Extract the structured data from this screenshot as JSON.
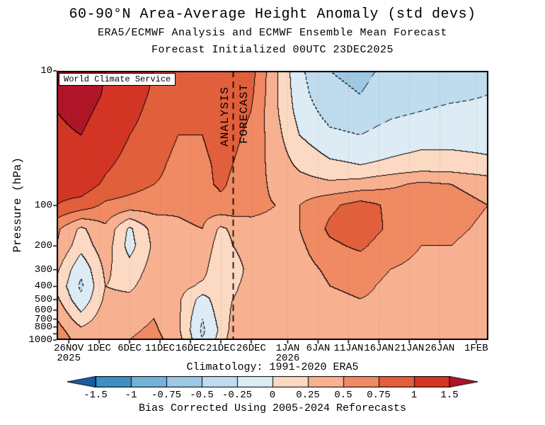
{
  "titles": {
    "line1": "60-90°N Area-Average Height Anomaly (std devs)",
    "line2": "ERA5/ECMWF Analysis and ECMWF Ensemble Mean Forecast",
    "line3": "Forecast Initialized 00UTC 23DEC2025"
  },
  "watermark": "World Climate Service",
  "labels": {
    "analysis": "ANALYSIS",
    "forecast": "FORECAST",
    "climatology": "Climatology: 1991-2020 ERA5",
    "bias": "Bias Corrected Using 2005-2024 Reforecasts"
  },
  "chart_data": {
    "type": "heatmap",
    "subtype": "filled-contour time-pressure section",
    "title": "60-90°N Area-Average Height Anomaly (std devs)",
    "units": "standard deviations",
    "grid": "dotted vertical lines at date ticks",
    "x_axis": {
      "domain_days": [
        0,
        71
      ],
      "ticks": [
        {
          "day": 2,
          "label": "26NOV",
          "sublabel": "2025"
        },
        {
          "day": 7,
          "label": "1DEC"
        },
        {
          "day": 12,
          "label": "6DEC"
        },
        {
          "day": 17,
          "label": "11DEC"
        },
        {
          "day": 22,
          "label": "16DEC"
        },
        {
          "day": 27,
          "label": "21DEC"
        },
        {
          "day": 32,
          "label": "26DEC"
        },
        {
          "day": 38,
          "label": "1JAN",
          "sublabel": "2026"
        },
        {
          "day": 43,
          "label": "6JAN"
        },
        {
          "day": 48,
          "label": "11JAN"
        },
        {
          "day": 53,
          "label": "16JAN"
        },
        {
          "day": 58,
          "label": "21JAN"
        },
        {
          "day": 63,
          "label": "26JAN"
        },
        {
          "day": 69,
          "label": "1FEB"
        }
      ]
    },
    "y_axis": {
      "label": "Pressure (hPa)",
      "scale": "log",
      "domain": [
        10,
        1000
      ],
      "ticks": [
        {
          "v": 10,
          "label": "10"
        },
        {
          "v": 100,
          "label": "100"
        },
        {
          "v": 200,
          "label": "200"
        },
        {
          "v": 300,
          "label": "300"
        },
        {
          "v": 400,
          "label": "400"
        },
        {
          "v": 500,
          "label": "500"
        },
        {
          "v": 600,
          "label": "600"
        },
        {
          "v": 700,
          "label": "700"
        },
        {
          "v": 800,
          "label": "800"
        },
        {
          "v": 900,
          "label": ""
        },
        {
          "v": 1000,
          "label": "1000"
        }
      ]
    },
    "analysis_day": 29,
    "analysis_date": "23DEC2025",
    "time_days": [
      0,
      4,
      8,
      12,
      16,
      20,
      24,
      27,
      29,
      32,
      36,
      40,
      45,
      50,
      55,
      60,
      65,
      71
    ],
    "levels_hpa": [
      10,
      15,
      20,
      30,
      50,
      70,
      100,
      150,
      200,
      300,
      400,
      500,
      700,
      850,
      1000
    ],
    "values": [
      [
        1.6,
        1.8,
        1.5,
        1.2,
        1.0,
        0.9,
        0.9,
        1.0,
        0.95,
        0.85,
        0.3,
        -0.2,
        -0.5,
        -0.55,
        -0.45,
        -0.4,
        -0.35,
        -0.3
      ],
      [
        1.55,
        1.75,
        1.45,
        1.15,
        0.95,
        0.85,
        0.85,
        0.95,
        0.9,
        0.8,
        0.3,
        -0.15,
        -0.45,
        -0.5,
        -0.4,
        -0.35,
        -0.3,
        -0.25
      ],
      [
        1.5,
        1.65,
        1.35,
        1.1,
        0.9,
        0.8,
        0.8,
        0.9,
        0.85,
        0.75,
        0.3,
        -0.1,
        -0.35,
        -0.4,
        -0.3,
        -0.25,
        -0.2,
        -0.2
      ],
      [
        1.4,
        1.5,
        1.2,
        1.0,
        0.85,
        0.75,
        0.75,
        0.85,
        0.8,
        0.7,
        0.35,
        0.0,
        -0.2,
        -0.25,
        -0.15,
        -0.1,
        -0.1,
        -0.1
      ],
      [
        1.2,
        1.3,
        1.05,
        0.9,
        0.8,
        0.7,
        0.7,
        0.8,
        0.75,
        0.65,
        0.4,
        0.2,
        0.05,
        0.0,
        0.05,
        0.1,
        0.1,
        0.05
      ],
      [
        1.1,
        1.15,
        0.95,
        0.85,
        0.75,
        0.7,
        0.7,
        0.78,
        0.72,
        0.6,
        0.45,
        0.35,
        0.3,
        0.35,
        0.45,
        0.55,
        0.5,
        0.4
      ],
      [
        1.0,
        0.9,
        0.7,
        0.65,
        0.6,
        0.55,
        0.6,
        0.7,
        0.68,
        0.55,
        0.5,
        0.5,
        0.7,
        0.85,
        0.7,
        0.6,
        0.6,
        0.5
      ],
      [
        0.55,
        0.2,
        0.45,
        -0.05,
        0.35,
        0.45,
        0.5,
        0.2,
        0.3,
        0.45,
        0.45,
        0.5,
        0.8,
        0.9,
        0.7,
        0.55,
        0.55,
        0.45
      ],
      [
        0.5,
        0.1,
        0.4,
        -0.1,
        0.3,
        0.4,
        0.45,
        0.1,
        0.25,
        0.4,
        0.4,
        0.45,
        0.7,
        0.8,
        0.6,
        0.5,
        0.5,
        0.4
      ],
      [
        0.3,
        -0.2,
        0.3,
        0.1,
        0.35,
        0.4,
        0.35,
        0.0,
        0.1,
        0.35,
        0.35,
        0.4,
        0.55,
        0.6,
        0.5,
        0.45,
        0.5,
        0.4
      ],
      [
        0.2,
        -0.3,
        0.25,
        0.2,
        0.4,
        0.35,
        0.2,
        0.1,
        0.2,
        0.35,
        0.3,
        0.35,
        0.5,
        0.55,
        0.45,
        0.4,
        0.5,
        0.4
      ],
      [
        0.3,
        -0.2,
        0.3,
        0.3,
        0.45,
        0.3,
        -0.1,
        0.15,
        0.25,
        0.35,
        0.3,
        0.35,
        0.45,
        0.5,
        0.45,
        0.4,
        0.5,
        0.4
      ],
      [
        0.5,
        0.1,
        0.4,
        0.4,
        0.5,
        0.3,
        -0.25,
        0.1,
        0.3,
        0.35,
        0.3,
        0.35,
        0.45,
        0.5,
        0.45,
        0.4,
        0.5,
        0.4
      ],
      [
        0.6,
        0.3,
        0.45,
        0.45,
        0.55,
        0.3,
        -0.3,
        0.05,
        0.35,
        0.4,
        0.3,
        0.35,
        0.45,
        0.5,
        0.45,
        0.4,
        0.5,
        0.4
      ],
      [
        0.65,
        0.4,
        0.5,
        0.5,
        0.6,
        0.35,
        -0.25,
        0.1,
        0.4,
        0.4,
        0.3,
        0.35,
        0.45,
        0.5,
        0.45,
        0.4,
        0.5,
        0.4
      ]
    ],
    "thresholds": [
      -1.5,
      -1,
      -0.75,
      -0.5,
      -0.25,
      0,
      0.25,
      0.5,
      0.75,
      1,
      1.5
    ],
    "bin_colors": [
      "#1b5aa5",
      "#3f8ec7",
      "#74b2d9",
      "#9cc8e4",
      "#bfdcee",
      "#dcebf4",
      "#fcd9c2",
      "#f7b191",
      "#f08a62",
      "#e25f3c",
      "#d33524",
      "#b01527"
    ],
    "contour_line_color": "#000000",
    "negative_contour_style": "dashed",
    "colorbar_tick_labels": [
      "-1.5",
      "-1",
      "-0.75",
      "-0.5",
      "-0.25",
      "0",
      "0.25",
      "0.5",
      "0.75",
      "1",
      "1.5"
    ],
    "legend_position": "bottom colorbar with arrow ends"
  }
}
